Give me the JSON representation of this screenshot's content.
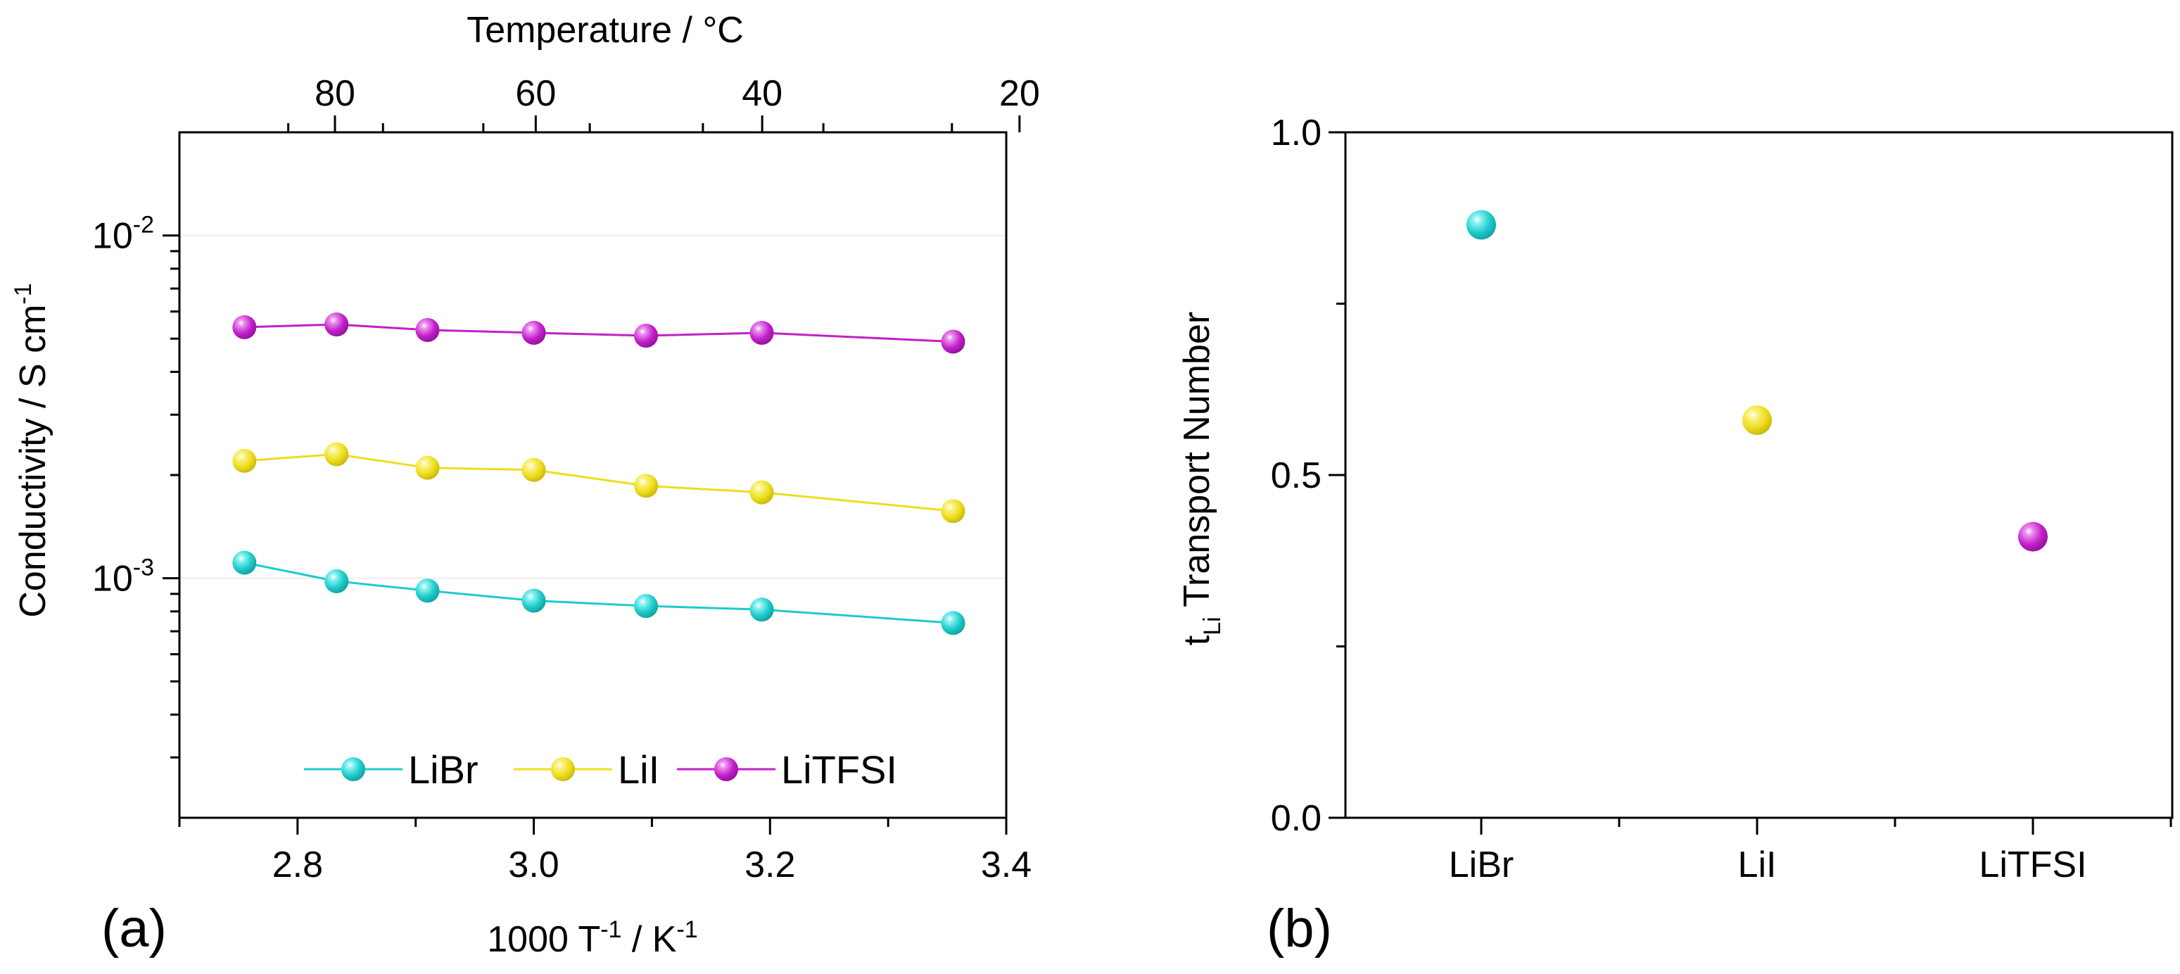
{
  "chart_data": [
    {
      "type": "line",
      "panel_label": "(a)",
      "xlabel": "1000 T",
      "xlabel_sup1": "-1",
      "xlabel_mid": " / K",
      "xlabel_sup2": "-1",
      "x2label": "Temperature / °C",
      "ylabel": "Conductivity / S cm",
      "ylabel_sup": "-1",
      "xlim": [
        2.7,
        3.4
      ],
      "ylim": [
        0.0002,
        0.02
      ],
      "yscale": "log",
      "grid": true,
      "x_ticks": [
        "2.8",
        "3.0",
        "3.2",
        "3.4"
      ],
      "x2_ticks": [
        {
          "value": 80,
          "label": "80"
        },
        {
          "value": 60,
          "label": "60"
        },
        {
          "value": 40,
          "label": "40"
        },
        {
          "value": 20,
          "label": "20"
        }
      ],
      "y_ticks": [
        {
          "value": 0.01,
          "base": "10",
          "exp": "-2"
        },
        {
          "value": 0.001,
          "base": "10",
          "exp": "-3"
        }
      ],
      "x": [
        2.755,
        2.833,
        2.91,
        3.0,
        3.095,
        3.193,
        3.355
      ],
      "series": [
        {
          "name": "LiBr",
          "color": "#1ecbcb",
          "values": [
            0.00111,
            0.00098,
            0.00092,
            0.00086,
            0.00083,
            0.00081,
            0.00074
          ]
        },
        {
          "name": "LiI",
          "color": "#eedd1a",
          "values": [
            0.0022,
            0.0023,
            0.0021,
            0.00207,
            0.00186,
            0.00178,
            0.00157
          ]
        },
        {
          "name": "LiTFSI",
          "color": "#c21fc9",
          "values": [
            0.0054,
            0.0055,
            0.0053,
            0.0052,
            0.0051,
            0.0052,
            0.0049
          ]
        }
      ],
      "legend": [
        "LiBr",
        "LiI",
        "LiTFSI"
      ],
      "legend_position": "bottom"
    },
    {
      "type": "scatter",
      "panel_label": "(b)",
      "ylabel": "t",
      "ylabel_sub": "Li",
      "ylabel_rest": " Transport Number",
      "ylim": [
        0.0,
        1.0
      ],
      "y_ticks": [
        "0.0",
        "0.5",
        "1.0"
      ],
      "categories": [
        "LiBr",
        "LiI",
        "LiTFSI"
      ],
      "colors": [
        "#1ecbcb",
        "#eedd1a",
        "#c21fc9"
      ],
      "values": [
        0.865,
        0.58,
        0.41
      ]
    }
  ]
}
